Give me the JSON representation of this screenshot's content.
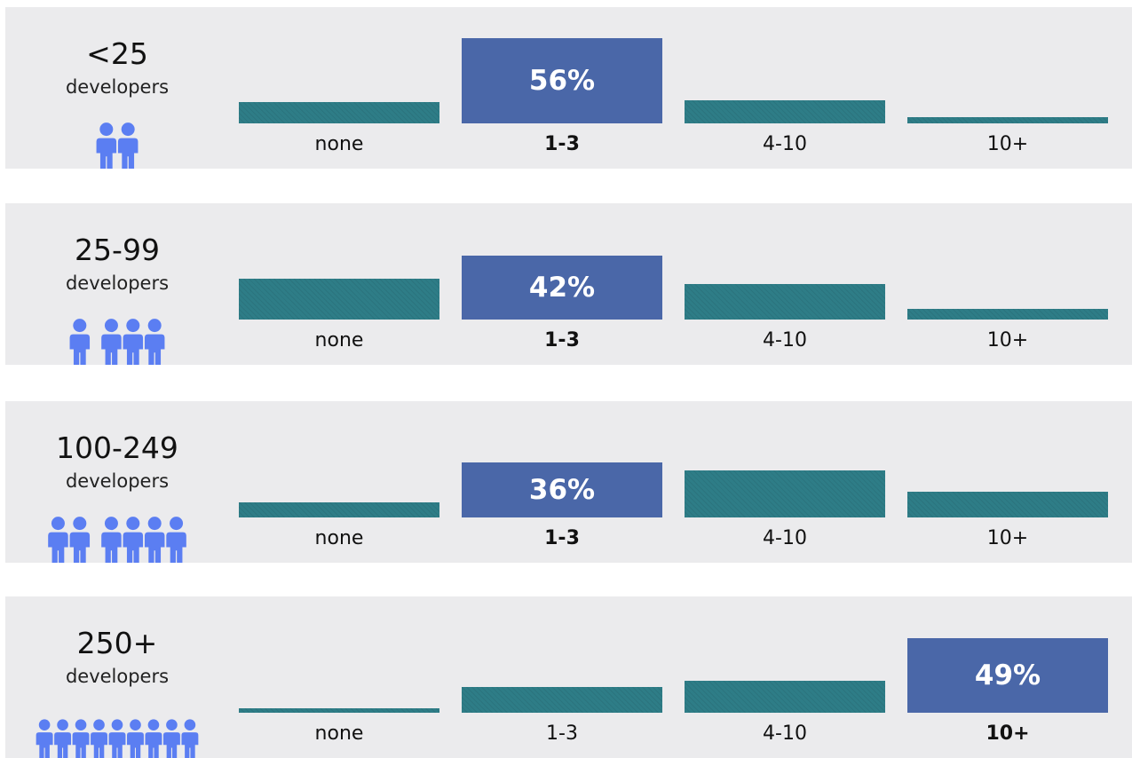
{
  "chart_data": {
    "type": "bar",
    "categories": [
      "none",
      "1-3",
      "4-10",
      "10+"
    ],
    "highlight_color": "#4a67a8",
    "bar_color": "#2e7d87",
    "panel_color": "#ebebed",
    "icon_color": "#5b7ef2",
    "segments": [
      {
        "title": "<25",
        "subtitle": "developers",
        "values": [
          14,
          56,
          15,
          4
        ],
        "highlight": 1,
        "label": "56%",
        "icon": "two-people-icon"
      },
      {
        "title": "25-99",
        "subtitle": "developers",
        "values": [
          27,
          42,
          23,
          7
        ],
        "highlight": 1,
        "label": "42%",
        "icon": "one-plus-three-people-icon"
      },
      {
        "title": "100-249",
        "subtitle": "developers",
        "values": [
          10,
          36,
          31,
          17
        ],
        "highlight": 1,
        "label": "36%",
        "icon": "two-plus-four-people-icon"
      },
      {
        "title": "250+",
        "subtitle": "developers",
        "values": [
          3,
          17,
          21,
          49
        ],
        "highlight": 3,
        "label": "49%",
        "icon": "crowd-icon"
      }
    ]
  }
}
